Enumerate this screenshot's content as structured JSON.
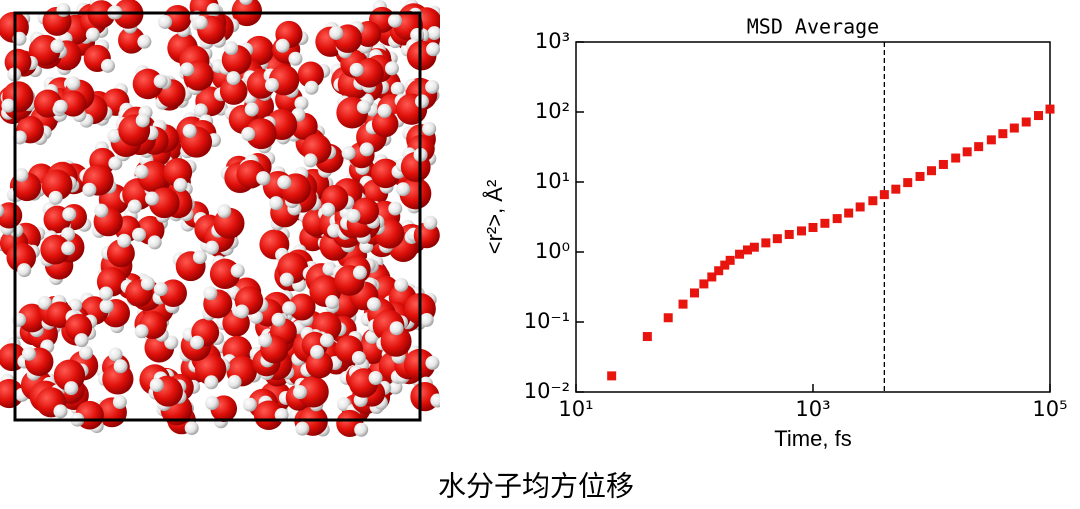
{
  "chart_data": {
    "type": "scatter",
    "title": "MSD Average",
    "x_label": "Time, fs",
    "y_label": "<r²>, Å²",
    "x": [
      20,
      40,
      60,
      80,
      100,
      120,
      140,
      160,
      180,
      200,
      240,
      280,
      320,
      400,
      500,
      630,
      800,
      1000,
      1260,
      1600,
      2000,
      2500,
      3200,
      4000,
      5000,
      6300,
      8000,
      10000,
      12600,
      16000,
      20000,
      25000,
      32000,
      40000,
      50000,
      63000,
      80000,
      100000
    ],
    "series": [
      {
        "color": "#e8140e",
        "values": [
          0.017,
          0.062,
          0.115,
          0.18,
          0.26,
          0.35,
          0.44,
          0.54,
          0.65,
          0.76,
          0.93,
          1.07,
          1.17,
          1.35,
          1.55,
          1.78,
          2.0,
          2.24,
          2.57,
          3.0,
          3.6,
          4.4,
          5.4,
          6.6,
          7.9,
          9.8,
          12,
          14.5,
          17.8,
          22,
          27,
          32,
          40,
          49,
          59,
          72,
          89,
          110
        ]
      }
    ],
    "marker": "square",
    "xscale": "log",
    "yscale": "log",
    "xlim": [
      10,
      100000
    ],
    "xticks": [
      {
        "value": 10,
        "label": "10¹"
      },
      {
        "value": 1000,
        "label": "10³"
      },
      {
        "value": 100000,
        "label": "10⁵"
      }
    ],
    "ylim": [
      0.01,
      1000
    ],
    "yticks": [
      {
        "value": 0.01,
        "label": "10⁻²"
      },
      {
        "value": 0.1,
        "label": "10⁻¹"
      },
      {
        "value": 1,
        "label": "10⁰"
      },
      {
        "value": 10,
        "label": "10¹"
      },
      {
        "value": 100,
        "label": "10²"
      },
      {
        "value": 1000,
        "label": "10³"
      }
    ],
    "vline_x": 4000,
    "grid": false
  },
  "caption": "水分子均方位移"
}
